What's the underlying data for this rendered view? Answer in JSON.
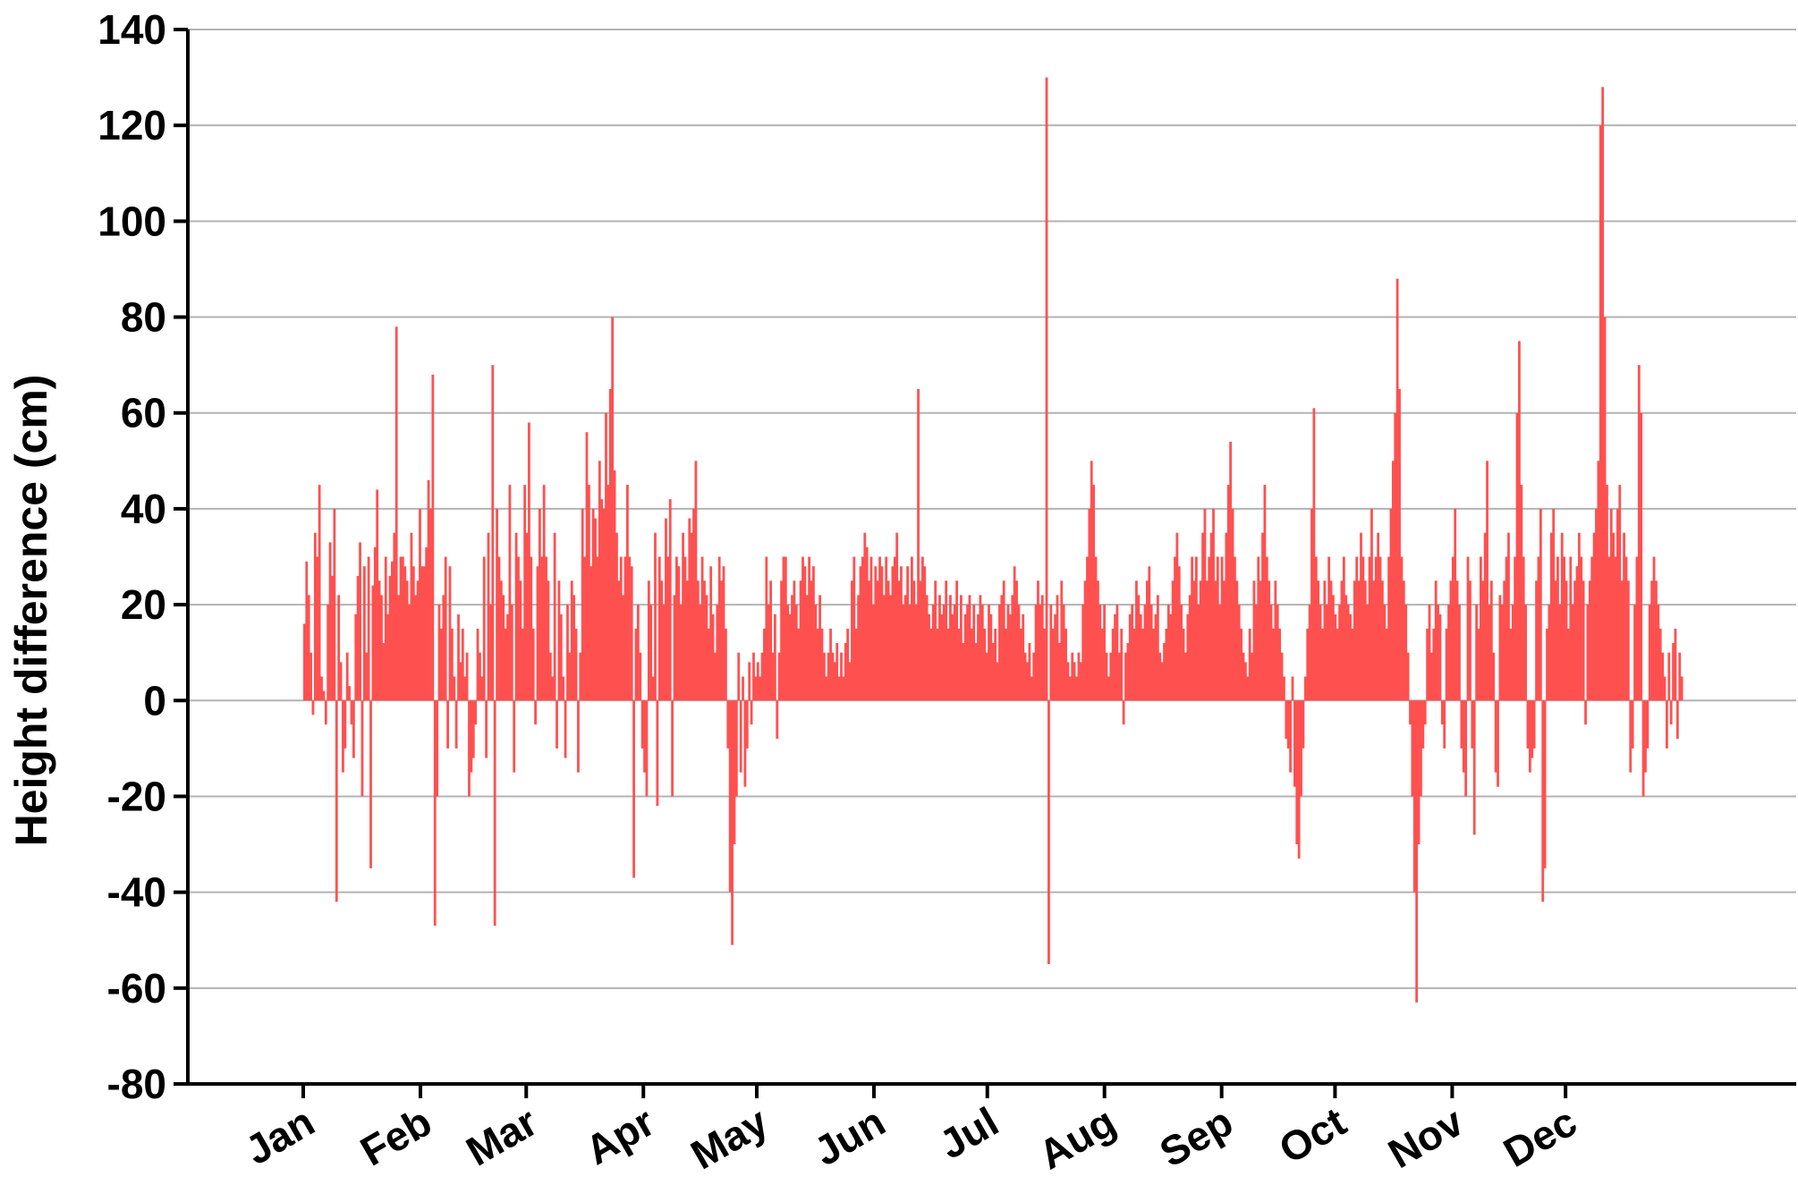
{
  "chart_data": {
    "type": "bar",
    "title": "",
    "xlabel": "",
    "ylabel": "Height difference (cm)",
    "ylim": [
      -80,
      140
    ],
    "yticks": [
      -80,
      -60,
      -40,
      -20,
      0,
      20,
      40,
      60,
      80,
      100,
      120,
      140
    ],
    "grid": true,
    "legend": "none",
    "bar_color": "#ff5050",
    "x_unit": "day of year",
    "xlim": [
      1,
      367
    ],
    "x_tick_days": [
      1,
      32,
      60,
      91,
      121,
      152,
      182,
      213,
      244,
      274,
      305,
      335
    ],
    "x_tick_labels": [
      "Jan",
      "Feb",
      "Mar",
      "Apr",
      "May",
      "Jun",
      "Jul",
      "Aug",
      "Sep",
      "Oct",
      "Nov",
      "Dec"
    ],
    "series": [
      {
        "values": [
          16,
          29,
          22,
          10,
          -3,
          35,
          30,
          45,
          5,
          2,
          -5,
          20,
          33,
          26,
          40,
          -42,
          22,
          8,
          -15,
          -10,
          10,
          3,
          -5,
          -12,
          18,
          26,
          33,
          -20,
          28,
          10,
          30,
          -35,
          24,
          32,
          44,
          25,
          22,
          12,
          30,
          18,
          26,
          29,
          35,
          78,
          22,
          30,
          30,
          28,
          25,
          20,
          35,
          28,
          22,
          25,
          40,
          28,
          28,
          32,
          46,
          40,
          68,
          -47,
          -20,
          20,
          15,
          22,
          30,
          -10,
          28,
          15,
          5,
          -10,
          18,
          8,
          15,
          5,
          10,
          -20,
          -15,
          -12,
          -5,
          15,
          10,
          5,
          30,
          -12,
          35,
          20,
          70,
          -47,
          40,
          30,
          25,
          22,
          15,
          18,
          45,
          20,
          -15,
          35,
          30,
          25,
          15,
          45,
          35,
          58,
          30,
          15,
          -5,
          28,
          40,
          30,
          45,
          30,
          25,
          10,
          5,
          35,
          -10,
          25,
          18,
          5,
          -12,
          20,
          10,
          25,
          22,
          15,
          -15,
          10,
          40,
          30,
          56,
          45,
          28,
          40,
          38,
          30,
          50,
          42,
          40,
          60,
          45,
          65,
          80,
          48,
          35,
          25,
          30,
          22,
          30,
          45,
          30,
          28,
          -37,
          15,
          20,
          10,
          -10,
          -15,
          -20,
          25,
          20,
          5,
          35,
          -22,
          30,
          25,
          20,
          38,
          30,
          42,
          -20,
          22,
          30,
          28,
          20,
          35,
          30,
          25,
          38,
          35,
          40,
          50,
          25,
          20,
          30,
          25,
          22,
          15,
          28,
          18,
          10,
          20,
          30,
          25,
          28,
          15,
          -10,
          -40,
          -51,
          -30,
          -20,
          10,
          -15,
          5,
          -18,
          -10,
          8,
          -5,
          10,
          5,
          8,
          5,
          10,
          15,
          30,
          20,
          25,
          10,
          18,
          -8,
          10,
          25,
          30,
          30,
          20,
          18,
          22,
          25,
          20,
          15,
          25,
          30,
          28,
          22,
          30,
          25,
          28,
          20,
          15,
          22,
          15,
          10,
          5,
          10,
          15,
          10,
          8,
          12,
          5,
          10,
          5,
          12,
          15,
          8,
          25,
          30,
          15,
          22,
          28,
          30,
          35,
          32,
          25,
          30,
          20,
          28,
          25,
          30,
          28,
          22,
          30,
          25,
          22,
          28,
          30,
          35,
          25,
          28,
          20,
          22,
          28,
          20,
          30,
          25,
          20,
          65,
          25,
          30,
          28,
          22,
          18,
          15,
          20,
          25,
          15,
          22,
          18,
          20,
          25,
          15,
          22,
          18,
          20,
          25,
          15,
          22,
          12,
          18,
          20,
          22,
          15,
          20,
          12,
          18,
          22,
          20,
          15,
          10,
          20,
          18,
          12,
          15,
          8,
          20,
          22,
          25,
          15,
          20,
          18,
          22,
          28,
          25,
          20,
          15,
          18,
          10,
          8,
          12,
          5,
          10,
          20,
          25,
          20,
          22,
          15,
          130,
          -55,
          20,
          15,
          18,
          22,
          12,
          25,
          20,
          15,
          8,
          5,
          10,
          8,
          5,
          10,
          8,
          20,
          25,
          30,
          40,
          50,
          45,
          30,
          25,
          20,
          15,
          20,
          10,
          5,
          10,
          15,
          18,
          20,
          10,
          15,
          -5,
          10,
          12,
          18,
          20,
          15,
          25,
          22,
          18,
          15,
          20,
          25,
          28,
          20,
          15,
          18,
          22,
          10,
          8,
          12,
          15,
          20,
          18,
          25,
          30,
          35,
          28,
          20,
          15,
          10,
          18,
          22,
          30,
          25,
          30,
          20,
          25,
          35,
          40,
          25,
          30,
          35,
          40,
          25,
          30,
          20,
          30,
          25,
          35,
          45,
          54,
          40,
          30,
          25,
          20,
          15,
          10,
          8,
          5,
          15,
          10,
          25,
          20,
          30,
          25,
          35,
          45,
          30,
          25,
          20,
          15,
          25,
          20,
          15,
          10,
          5,
          -8,
          -10,
          -15,
          5,
          -18,
          -30,
          -33,
          -20,
          -10,
          5,
          15,
          20,
          40,
          61,
          30,
          25,
          20,
          15,
          25,
          20,
          30,
          25,
          22,
          18,
          15,
          20,
          25,
          30,
          22,
          20,
          18,
          15,
          25,
          30,
          25,
          35,
          30,
          25,
          20,
          30,
          40,
          25,
          30,
          35,
          30,
          25,
          20,
          15,
          30,
          40,
          50,
          60,
          88,
          65,
          30,
          25,
          20,
          10,
          -5,
          -20,
          -40,
          -63,
          -30,
          -20,
          -10,
          -5,
          15,
          20,
          10,
          15,
          25,
          20,
          18,
          -5,
          -10,
          15,
          20,
          25,
          30,
          40,
          25,
          20,
          -10,
          -15,
          -20,
          30,
          25,
          -10,
          -28,
          20,
          15,
          30,
          25,
          35,
          50,
          20,
          25,
          10,
          -15,
          -18,
          22,
          20,
          25,
          30,
          35,
          15,
          20,
          30,
          60,
          75,
          45,
          30,
          20,
          -10,
          -15,
          -12,
          -10,
          25,
          30,
          40,
          -42,
          -35,
          15,
          20,
          35,
          40,
          25,
          30,
          20,
          35,
          30,
          25,
          15,
          30,
          20,
          25,
          28,
          35,
          30,
          25,
          -5,
          20,
          25,
          30,
          35,
          40,
          50,
          120,
          128,
          80,
          45,
          30,
          40,
          35,
          30,
          40,
          45,
          25,
          35,
          30,
          25,
          -15,
          -10,
          20,
          30,
          70,
          60,
          -20,
          -15,
          -10,
          20,
          25,
          30,
          25,
          20,
          15,
          10,
          5,
          -10,
          10,
          -5,
          12,
          15,
          -8,
          10,
          5
        ]
      }
    ]
  }
}
